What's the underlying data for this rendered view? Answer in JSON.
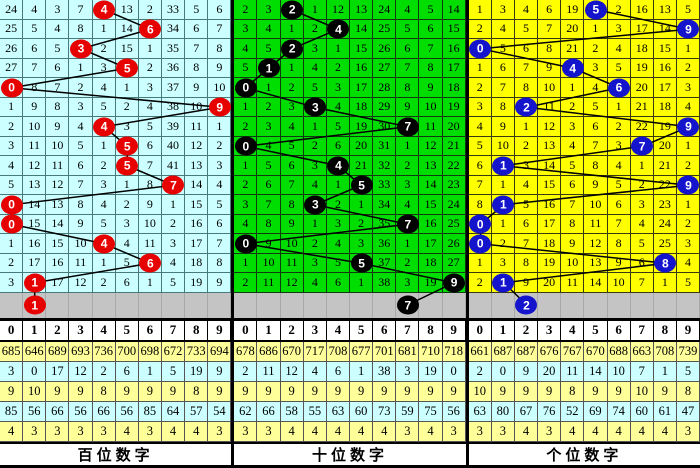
{
  "digit_header": [
    "0",
    "1",
    "2",
    "3",
    "4",
    "5",
    "6",
    "7",
    "8",
    "9"
  ],
  "colors": {
    "hundreds_bg": "#ccffff",
    "tens_bg": "#00dd00",
    "units_bg": "#ffff00",
    "gray_row_bg": "#c4c4c4",
    "stat_yellow": "#ffff99",
    "stat_cyan": "#ccffff",
    "hundreds_circle": "#e60000",
    "tens_circle": "#000000",
    "units_circle": "#1414cc"
  },
  "chart_data": [
    {
      "type": "table",
      "title": "百位数字",
      "columns": [
        "0",
        "1",
        "2",
        "3",
        "4",
        "5",
        "6",
        "7",
        "8",
        "9"
      ],
      "drawn_sequence": [
        4,
        6,
        3,
        5,
        0,
        9,
        4,
        5,
        5,
        7,
        0,
        0,
        4,
        6,
        1
      ],
      "predicted_next": 1
    },
    {
      "type": "table",
      "title": "十位数字",
      "columns": [
        "0",
        "1",
        "2",
        "3",
        "4",
        "5",
        "6",
        "7",
        "8",
        "9"
      ],
      "drawn_sequence": [
        2,
        4,
        2,
        1,
        0,
        3,
        7,
        0,
        4,
        5,
        3,
        7,
        0,
        5,
        9
      ],
      "predicted_next": 7
    },
    {
      "type": "table",
      "title": "个位数字",
      "columns": [
        "0",
        "1",
        "2",
        "3",
        "4",
        "5",
        "6",
        "7",
        "8",
        "9"
      ],
      "drawn_sequence": [
        5,
        9,
        0,
        4,
        6,
        2,
        9,
        7,
        1,
        9,
        1,
        0,
        0,
        8,
        1
      ],
      "predicted_next": 2
    }
  ],
  "panels": [
    {
      "id": "hundreds",
      "title": "百位数字",
      "bg": "#ccffff",
      "circle_color": "#e60000",
      "rows": [
        [
          "24",
          "4",
          "3",
          "7",
          "4",
          "13",
          "2",
          "33",
          "5",
          "6"
        ],
        [
          "25",
          "5",
          "4",
          "8",
          "1",
          "14",
          "6",
          "34",
          "6",
          "7"
        ],
        [
          "26",
          "6",
          "5",
          "3",
          "2",
          "15",
          "1",
          "35",
          "7",
          "8"
        ],
        [
          "27",
          "7",
          "6",
          "1",
          "3",
          "5",
          "2",
          "36",
          "8",
          "9"
        ],
        [
          "0",
          "8",
          "7",
          "2",
          "4",
          "1",
          "3",
          "37",
          "9",
          "10"
        ],
        [
          "1",
          "9",
          "8",
          "3",
          "5",
          "2",
          "4",
          "38",
          "10",
          "9"
        ],
        [
          "2",
          "10",
          "9",
          "4",
          "4",
          "3",
          "5",
          "39",
          "11",
          "1"
        ],
        [
          "3",
          "11",
          "10",
          "5",
          "1",
          "5",
          "6",
          "40",
          "12",
          "2"
        ],
        [
          "4",
          "12",
          "11",
          "6",
          "2",
          "5",
          "7",
          "41",
          "13",
          "3"
        ],
        [
          "5",
          "13",
          "12",
          "7",
          "3",
          "1",
          "8",
          "7",
          "14",
          "4"
        ],
        [
          "0",
          "14",
          "13",
          "8",
          "4",
          "2",
          "9",
          "1",
          "15",
          "5"
        ],
        [
          "0",
          "15",
          "14",
          "9",
          "5",
          "3",
          "10",
          "2",
          "16",
          "6"
        ],
        [
          "1",
          "16",
          "15",
          "10",
          "4",
          "4",
          "11",
          "3",
          "17",
          "7"
        ],
        [
          "2",
          "17",
          "16",
          "11",
          "1",
          "5",
          "6",
          "4",
          "18",
          "8"
        ],
        [
          "3",
          "1",
          "17",
          "12",
          "2",
          "6",
          "1",
          "5",
          "19",
          "9"
        ]
      ],
      "circle_cols": [
        4,
        6,
        3,
        5,
        0,
        9,
        4,
        5,
        5,
        7,
        0,
        0,
        4,
        6,
        1
      ],
      "gray_circle": {
        "col": 1,
        "label": "1"
      },
      "stats": [
        [
          "685",
          "646",
          "689",
          "693",
          "736",
          "700",
          "698",
          "672",
          "733",
          "694"
        ],
        [
          "3",
          "0",
          "17",
          "12",
          "2",
          "6",
          "1",
          "5",
          "19",
          "9"
        ],
        [
          "9",
          "10",
          "9",
          "9",
          "8",
          "9",
          "9",
          "9",
          "8",
          "9"
        ],
        [
          "85",
          "56",
          "66",
          "56",
          "66",
          "56",
          "85",
          "64",
          "57",
          "54"
        ],
        [
          "4",
          "3",
          "3",
          "3",
          "3",
          "4",
          "3",
          "4",
          "4",
          "3"
        ]
      ]
    },
    {
      "id": "tens",
      "title": "十位数字",
      "bg": "#00dd00",
      "circle_color": "#000000",
      "rows": [
        [
          "2",
          "3",
          "2",
          "1",
          "12",
          "13",
          "24",
          "4",
          "5",
          "14"
        ],
        [
          "3",
          "4",
          "1",
          "2",
          "4",
          "14",
          "25",
          "5",
          "6",
          "15"
        ],
        [
          "4",
          "5",
          "2",
          "3",
          "1",
          "15",
          "26",
          "6",
          "7",
          "16"
        ],
        [
          "5",
          "1",
          "1",
          "4",
          "2",
          "16",
          "27",
          "7",
          "8",
          "17"
        ],
        [
          "0",
          "1",
          "2",
          "5",
          "3",
          "17",
          "28",
          "8",
          "9",
          "18"
        ],
        [
          "1",
          "2",
          "3",
          "3",
          "4",
          "18",
          "29",
          "9",
          "10",
          "19"
        ],
        [
          "2",
          "3",
          "4",
          "1",
          "5",
          "19",
          "30",
          "7",
          "11",
          "20"
        ],
        [
          "0",
          "4",
          "5",
          "2",
          "6",
          "20",
          "31",
          "1",
          "12",
          "21"
        ],
        [
          "1",
          "5",
          "6",
          "3",
          "4",
          "21",
          "32",
          "2",
          "13",
          "22"
        ],
        [
          "2",
          "6",
          "7",
          "4",
          "1",
          "5",
          "33",
          "3",
          "14",
          "23"
        ],
        [
          "3",
          "7",
          "8",
          "3",
          "2",
          "1",
          "34",
          "4",
          "15",
          "24"
        ],
        [
          "4",
          "8",
          "9",
          "1",
          "3",
          "2",
          "35",
          "7",
          "16",
          "25"
        ],
        [
          "0",
          "9",
          "10",
          "2",
          "4",
          "3",
          "36",
          "1",
          "17",
          "26"
        ],
        [
          "1",
          "10",
          "11",
          "3",
          "5",
          "5",
          "37",
          "2",
          "18",
          "27"
        ],
        [
          "2",
          "11",
          "12",
          "4",
          "6",
          "1",
          "38",
          "3",
          "19",
          "9"
        ]
      ],
      "circle_cols": [
        2,
        4,
        2,
        1,
        0,
        3,
        7,
        0,
        4,
        5,
        3,
        7,
        0,
        5,
        9
      ],
      "gray_circle": {
        "col": 7,
        "label": "7"
      },
      "stats": [
        [
          "678",
          "686",
          "670",
          "717",
          "708",
          "677",
          "701",
          "681",
          "710",
          "718"
        ],
        [
          "2",
          "11",
          "12",
          "4",
          "6",
          "1",
          "38",
          "3",
          "19",
          "0"
        ],
        [
          "9",
          "9",
          "9",
          "9",
          "9",
          "9",
          "9",
          "9",
          "9",
          "9"
        ],
        [
          "62",
          "66",
          "58",
          "55",
          "63",
          "60",
          "73",
          "59",
          "75",
          "56"
        ],
        [
          "3",
          "3",
          "4",
          "4",
          "4",
          "4",
          "4",
          "3",
          "4",
          "3"
        ]
      ]
    },
    {
      "id": "units",
      "title": "个位数字",
      "bg": "#ffff00",
      "circle_color": "#1414cc",
      "rows": [
        [
          "1",
          "3",
          "4",
          "6",
          "19",
          "5",
          "2",
          "16",
          "13",
          "5"
        ],
        [
          "2",
          "4",
          "5",
          "7",
          "20",
          "1",
          "3",
          "17",
          "14",
          "9"
        ],
        [
          "0",
          "5",
          "6",
          "8",
          "21",
          "2",
          "4",
          "18",
          "15",
          "1"
        ],
        [
          "1",
          "6",
          "7",
          "9",
          "4",
          "3",
          "5",
          "19",
          "16",
          "2"
        ],
        [
          "2",
          "7",
          "8",
          "10",
          "1",
          "4",
          "6",
          "20",
          "17",
          "3"
        ],
        [
          "3",
          "8",
          "2",
          "11",
          "2",
          "5",
          "1",
          "21",
          "18",
          "4"
        ],
        [
          "4",
          "9",
          "1",
          "12",
          "3",
          "6",
          "2",
          "22",
          "19",
          "9"
        ],
        [
          "5",
          "10",
          "2",
          "13",
          "4",
          "7",
          "3",
          "7",
          "20",
          "1"
        ],
        [
          "6",
          "1",
          "3",
          "14",
          "5",
          "8",
          "4",
          "1",
          "21",
          "2"
        ],
        [
          "7",
          "1",
          "4",
          "15",
          "6",
          "9",
          "5",
          "2",
          "22",
          "9"
        ],
        [
          "8",
          "1",
          "5",
          "16",
          "7",
          "10",
          "6",
          "3",
          "23",
          "1"
        ],
        [
          "0",
          "1",
          "6",
          "17",
          "8",
          "11",
          "7",
          "4",
          "24",
          "2"
        ],
        [
          "0",
          "2",
          "7",
          "18",
          "9",
          "12",
          "8",
          "5",
          "25",
          "3"
        ],
        [
          "1",
          "3",
          "8",
          "19",
          "10",
          "13",
          "9",
          "6",
          "8",
          "4"
        ],
        [
          "2",
          "1",
          "9",
          "20",
          "11",
          "14",
          "10",
          "7",
          "1",
          "5"
        ]
      ],
      "circle_cols": [
        5,
        9,
        0,
        4,
        6,
        2,
        9,
        7,
        1,
        9,
        1,
        0,
        0,
        8,
        1
      ],
      "gray_circle": {
        "col": 2,
        "label": "2"
      },
      "stats": [
        [
          "661",
          "687",
          "687",
          "676",
          "767",
          "670",
          "688",
          "663",
          "708",
          "739"
        ],
        [
          "2",
          "0",
          "9",
          "20",
          "11",
          "14",
          "10",
          "7",
          "1",
          "5"
        ],
        [
          "10",
          "9",
          "9",
          "9",
          "8",
          "9",
          "9",
          "10",
          "9",
          "8"
        ],
        [
          "63",
          "80",
          "67",
          "76",
          "52",
          "69",
          "74",
          "60",
          "61",
          "47"
        ],
        [
          "3",
          "3",
          "4",
          "3",
          "4",
          "4",
          "4",
          "4",
          "4",
          "3"
        ]
      ]
    }
  ]
}
